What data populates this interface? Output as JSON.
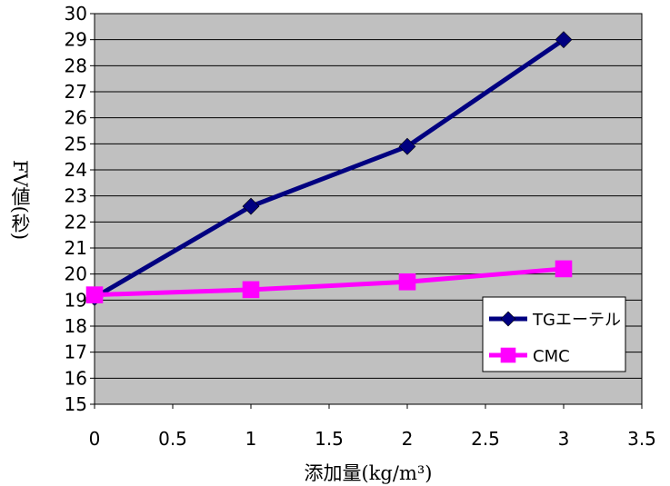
{
  "chart_data": {
    "type": "line",
    "xlabel": "添加量(kg/m³)",
    "ylabel": "FV値(秒)",
    "xlim": [
      0,
      3.5
    ],
    "ylim": [
      15,
      30
    ],
    "x_ticks": [
      "0",
      "0.5",
      "1",
      "1.5",
      "2",
      "2.5",
      "3",
      "3.5"
    ],
    "y_ticks": [
      "15",
      "16",
      "17",
      "18",
      "19",
      "20",
      "21",
      "22",
      "23",
      "24",
      "25",
      "26",
      "27",
      "28",
      "29",
      "30"
    ],
    "grid": "horizontal",
    "plot_background": "#c0c0c0",
    "legend_position": "bottom-right",
    "series": [
      {
        "name": "TGエーテル",
        "x": [
          0,
          1,
          2,
          3
        ],
        "y": [
          19.1,
          22.6,
          24.9,
          29.0
        ],
        "color": "#000080",
        "marker": "diamond"
      },
      {
        "name": "CMC",
        "x": [
          0,
          1,
          2,
          3
        ],
        "y": [
          19.2,
          19.4,
          19.7,
          20.2
        ],
        "color": "#ff00ff",
        "marker": "square"
      }
    ]
  }
}
